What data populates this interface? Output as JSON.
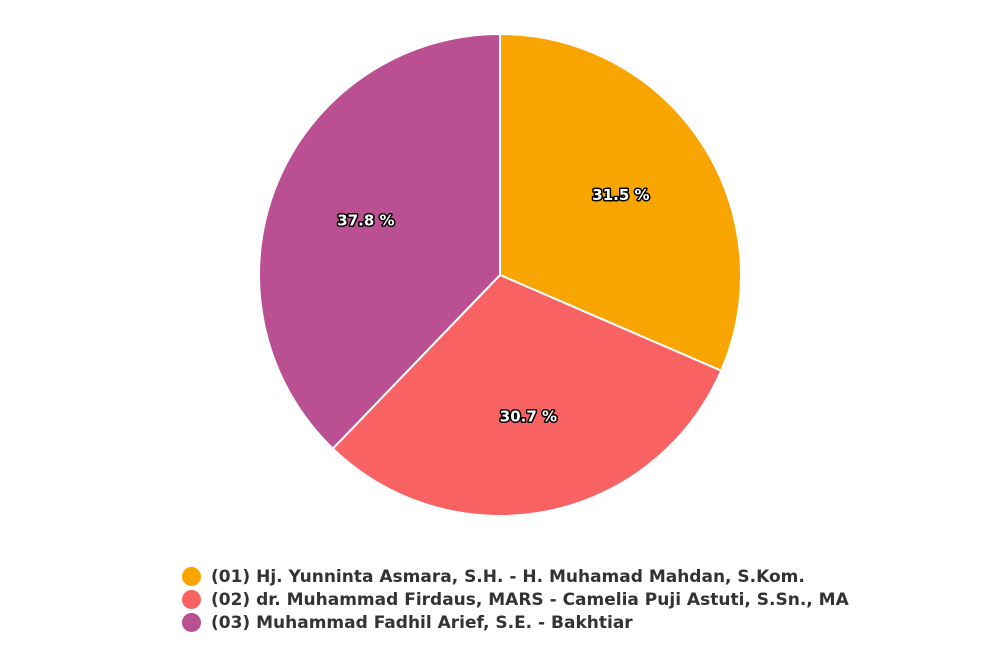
{
  "chart_data": {
    "type": "pie",
    "title": "",
    "legend_position": "bottom",
    "categories": [
      "(01) Hj. Yunninta Asmara, S.H. - H. Muhamad Mahdan, S.Kom.",
      "(02) dr. Muhammad Firdaus, MARS - Camelia Puji Astuti, S.Sn., MA",
      "(03) Muhammad Fadhil Arief, S.E. - Bakhtiar"
    ],
    "values": [
      31.5,
      30.7,
      37.8
    ],
    "labels": [
      "31.5 %",
      "30.7 %",
      "37.8 %"
    ],
    "colors": [
      "#F8A502",
      "#F96263",
      "#BA4F92"
    ]
  },
  "legend": {
    "items": [
      {
        "label": "(01) Hj. Yunninta Asmara, S.H. - H. Muhamad Mahdan, S.Kom.",
        "color": "#F8A502"
      },
      {
        "label": "(02) dr. Muhammad Firdaus, MARS - Camelia Puji Astuti, S.Sn., MA",
        "color": "#F96263"
      },
      {
        "label": "(03) Muhammad Fadhil Arief, S.E. - Bakhtiar",
        "color": "#BA4F92"
      }
    ]
  }
}
